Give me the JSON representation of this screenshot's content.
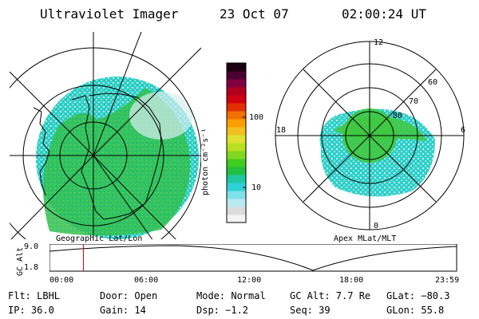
{
  "header": {
    "instrument": "Ultraviolet Imager",
    "date": "23 Oct 07",
    "time": "02:00:24 UT"
  },
  "colorbar": {
    "unit_label": "photon cm⁻²s⁻¹",
    "tick_labels": [
      "100",
      "10"
    ],
    "colors": [
      "#f4f4f4",
      "#dcdcdc",
      "#b8eaf0",
      "#7ee0e8",
      "#2fd0d8",
      "#1fc8a0",
      "#20c040",
      "#40cc20",
      "#80d820",
      "#b8e020",
      "#e0e030",
      "#f0c020",
      "#f8a000",
      "#f07000",
      "#e03000",
      "#d00010",
      "#b00020",
      "#800040",
      "#4a0030",
      "#1a0010"
    ]
  },
  "left_map": {
    "caption": "Geographic Lat/Lon"
  },
  "right_map": {
    "caption": "Apex MLat/MLT",
    "mlt_labels": {
      "top": "12",
      "left": "18",
      "right": "6",
      "bottom": "0"
    },
    "lat_labels": [
      "60",
      "70",
      "80"
    ]
  },
  "altitude_plot": {
    "ylabel": "GC Alt",
    "y_ticks": [
      "9.0",
      "1.8"
    ],
    "x_ticks": [
      "00:00",
      "06:00",
      "12:00",
      "18:00",
      "23:59"
    ],
    "current_time_fraction": 0.0834
  },
  "footer": {
    "flt": "Flt: LBHL",
    "door": "Door: Open",
    "mode": "Mode: Normal",
    "gc_alt": "GC Alt: 7.7 Re",
    "glat": "GLat: −80.3",
    "ip": "IP: 36.0",
    "gain": "Gain: 14",
    "dsp": "Dsp:    −1.2",
    "seq": "Seq: 39",
    "glon": "GLon:  55.8"
  }
}
